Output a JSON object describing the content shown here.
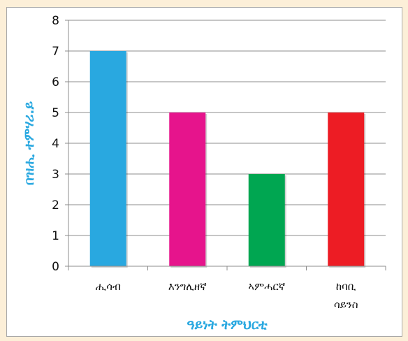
{
  "chart_data": {
    "type": "bar",
    "categories": [
      "ሒሳብ",
      "እንግሊዘኛ",
      "ኣምሓርኛ",
      "ከባቢ ሳይንስ"
    ],
    "values": [
      7,
      5,
      3,
      5
    ],
    "colors": [
      "#29a8e0",
      "#e6148c",
      "#00a651",
      "#ed1c24"
    ],
    "xlabel": "ዓይነት ትምህርቲ",
    "ylabel": "በዝሒ ተምሃሪ.ይ",
    "ylim": [
      0,
      8
    ],
    "yticks": [
      0,
      1,
      2,
      3,
      4,
      5,
      6,
      7,
      8
    ],
    "grid": true,
    "axis_label_color": "#29a8e0"
  }
}
